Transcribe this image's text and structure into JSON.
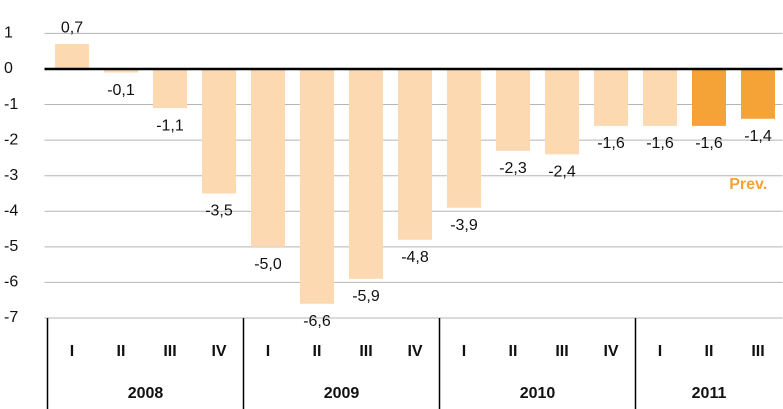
{
  "chart_data": {
    "type": "bar",
    "categories": [
      "I",
      "II",
      "III",
      "IV",
      "I",
      "II",
      "III",
      "IV",
      "I",
      "II",
      "III",
      "IV",
      "I",
      "II",
      "III"
    ],
    "groups": [
      "2008",
      "2009",
      "2010",
      "2011"
    ],
    "values": [
      0.7,
      -0.1,
      -1.1,
      -3.5,
      -5.0,
      -6.6,
      -5.9,
      -4.8,
      -3.9,
      -2.3,
      -2.4,
      -1.6,
      -1.6,
      -1.6,
      -1.4
    ],
    "value_labels": [
      "0,7",
      "-0,1",
      "-1,1",
      "-3,5",
      "-5,0",
      "-6,6",
      "-5,9",
      "-4,8",
      "-3,9",
      "-2,3",
      "-2,4",
      "-1,6",
      "-1,6",
      "-1,6",
      "-1,4"
    ],
    "colors": [
      "#fcd9b1",
      "#fcd9b1",
      "#fcd9b1",
      "#fcd9b1",
      "#fcd9b1",
      "#fcd9b1",
      "#fcd9b1",
      "#fcd9b1",
      "#fcd9b1",
      "#fcd9b1",
      "#fcd9b1",
      "#fcd9b1",
      "#fcd9b1",
      "#f5a236",
      "#f5a236"
    ],
    "annotation": "Prev.",
    "annotation_color": "#f5a236",
    "ylim": [
      -7,
      1.7
    ],
    "yticks": [
      1,
      0,
      -1,
      -2,
      -3,
      -4,
      -5,
      -6,
      -7
    ],
    "grid": true
  }
}
